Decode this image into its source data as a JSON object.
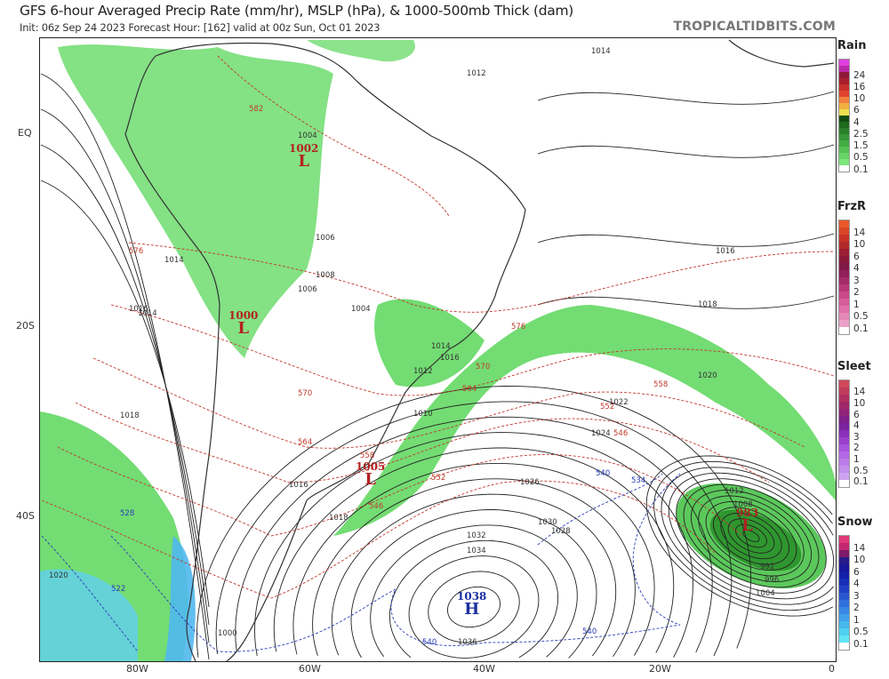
{
  "header": {
    "title": "GFS 6-hour Averaged Precip Rate (mm/hr), MSLP (hPa), & 1000-500mb Thick (dam)",
    "subtitle": "Init: 06z Sep 24 2023   Forecast Hour: [162]   valid at 00z Sun, Oct 01 2023",
    "brand": "TROPICALTIDBITS.COM"
  },
  "axes": {
    "lat_labels": [
      "EQ",
      "20S",
      "40S"
    ],
    "lon_labels": [
      "80W",
      "60W",
      "40W",
      "20W",
      "0"
    ]
  },
  "pressure_centers": [
    {
      "type": "L",
      "value": "1002"
    },
    {
      "type": "L",
      "value": "1000"
    },
    {
      "type": "L",
      "value": "1005"
    },
    {
      "type": "H",
      "value": "1038"
    },
    {
      "type": "L",
      "value": "983"
    }
  ],
  "isobar_labels": [
    "1014",
    "1012",
    "1014",
    "1016",
    "1018",
    "1020",
    "1022",
    "1024",
    "1026",
    "1030",
    "1032",
    "1034",
    "1036",
    "1016",
    "1018",
    "1020",
    "1004",
    "1006",
    "1008",
    "1012",
    "1014",
    "1016",
    "1018",
    "1012",
    "1008",
    "992",
    "996",
    "1004",
    "1010",
    "1004",
    "1006",
    "1014",
    "1016",
    "1000",
    "1028"
  ],
  "thickness_labels": [
    "582",
    "576",
    "570",
    "564",
    "558",
    "552",
    "546",
    "540",
    "534",
    "528",
    "522",
    "576",
    "570",
    "564",
    "558",
    "552",
    "546",
    "540",
    "540"
  ],
  "legend": [
    {
      "title": "Rain",
      "ticks": [
        "24",
        "16",
        "10",
        "6",
        "4",
        "2.5",
        "1.5",
        "0.5",
        "0.1"
      ],
      "colors": [
        "#e040e0",
        "#b82aa8",
        "#8e1a3a",
        "#a8202c",
        "#c8302c",
        "#e0442c",
        "#f08040",
        "#f0b040",
        "#f0e050",
        "#124d12",
        "#1e6a1e",
        "#2a802a",
        "#379637",
        "#44ab44",
        "#54c054",
        "#66d466",
        "#7ce67c",
        "#ffffff"
      ]
    },
    {
      "title": "FrzR",
      "ticks": [
        "14",
        "10",
        "6",
        "4",
        "3",
        "2",
        "1",
        "0.5",
        "0.1"
      ],
      "colors": [
        "#e8582a",
        "#d84628",
        "#c83226",
        "#b02a2c",
        "#9c1e34",
        "#8a1a3c",
        "#801a48",
        "#902058",
        "#a42a68",
        "#b83878",
        "#c84a88",
        "#d65e98",
        "#e070a8",
        "#e488b8",
        "#eca0c8",
        "#ffffff"
      ]
    },
    {
      "title": "Sleet",
      "ticks": [
        "14",
        "10",
        "6",
        "4",
        "3",
        "2",
        "1",
        "0.5",
        "0.1"
      ],
      "colors": [
        "#d04858",
        "#c03c5c",
        "#b03060",
        "#a02868",
        "#902478",
        "#80208a",
        "#7a24a0",
        "#8a30b8",
        "#9a40cc",
        "#a854dc",
        "#b468e4",
        "#bc7ce8",
        "#c490ec",
        "#cca4f0",
        "#ffffff"
      ]
    },
    {
      "title": "Snow",
      "ticks": [
        "14",
        "10",
        "6",
        "4",
        "3",
        "2",
        "1",
        "0.5",
        "0.1"
      ],
      "colors": [
        "#e03878",
        "#c02870",
        "#801a6a",
        "#281a8a",
        "#18189a",
        "#1420a8",
        "#1830b8",
        "#2040c4",
        "#2858d0",
        "#3070dc",
        "#3888e4",
        "#40a0ea",
        "#48b8ee",
        "#50d0f0",
        "#60e4f4",
        "#ffffff"
      ]
    }
  ],
  "colors": {
    "land_border": "#333333",
    "isobar": "#222222",
    "thickness_warm": "#c0392b",
    "thickness_cold": "#2a3cb8",
    "precip": "#44cc44",
    "low_color": "#b22222",
    "high_color": "#1a2ea0"
  }
}
